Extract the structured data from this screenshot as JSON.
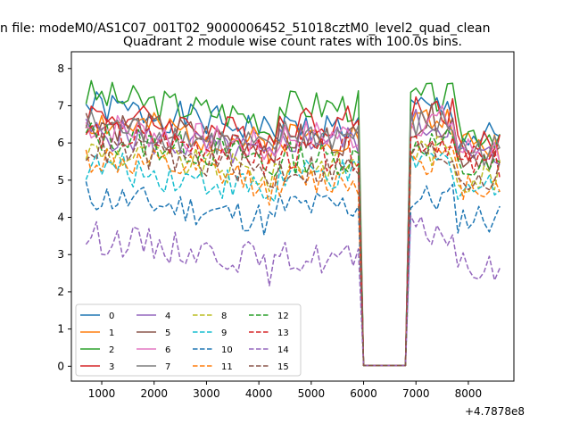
{
  "chart_data": {
    "type": "line",
    "suptitle": "n file: modeM0/AS1C07_001T02_9000006452_51018cztM0_level2_quad_clean",
    "title": "Quadrant 2 module wise count rates with 100.0s bins.",
    "xlabel": "",
    "ylabel": "",
    "x_offset_label": "+4.7878e8",
    "xlim": [
      420,
      8870
    ],
    "ylim": [
      -0.4,
      8.45
    ],
    "x_ticks": [
      1000,
      2000,
      3000,
      4000,
      5000,
      6000,
      7000,
      8000
    ],
    "x_tick_labels": [
      "1000",
      "2000",
      "3000",
      "4000",
      "5000",
      "6000",
      "7000",
      "8000"
    ],
    "y_ticks": [
      0,
      1,
      2,
      3,
      4,
      5,
      6,
      7,
      8
    ],
    "y_tick_labels": [
      "0",
      "1",
      "2",
      "3",
      "4",
      "5",
      "6",
      "7",
      "8"
    ],
    "grid": false,
    "legend_position": "lower-left",
    "segments": [
      {
        "start": 700,
        "end": 4000
      },
      {
        "start": 4100,
        "end": 4350
      },
      {
        "start": 4400,
        "end": 5900
      },
      {
        "start": 5950,
        "end": 6850
      },
      {
        "start": 6900,
        "end": 7700
      },
      {
        "start": 7800,
        "end": 8600
      }
    ],
    "series": [
      {
        "name": "0",
        "color": "#1f77b4",
        "style": "solid",
        "seed": 1,
        "segment_levels": [
          6.4,
          6.3,
          6.4,
          0.02,
          6.9,
          6.1
        ]
      },
      {
        "name": "1",
        "color": "#ff7f0e",
        "style": "solid",
        "seed": 2,
        "segment_levels": [
          6.0,
          5.9,
          6.2,
          0.02,
          6.6,
          5.9
        ]
      },
      {
        "name": "2",
        "color": "#2ca02c",
        "style": "solid",
        "seed": 3,
        "segment_levels": [
          6.7,
          6.4,
          7.0,
          0.02,
          7.2,
          6.3
        ]
      },
      {
        "name": "3",
        "color": "#d62728",
        "style": "solid",
        "seed": 4,
        "segment_levels": [
          6.2,
          6.1,
          6.6,
          0.02,
          6.9,
          5.9
        ]
      },
      {
        "name": "4",
        "color": "#9467bd",
        "style": "solid",
        "seed": 5,
        "segment_levels": [
          5.7,
          5.5,
          6.1,
          0.02,
          6.5,
          5.6
        ]
      },
      {
        "name": "5",
        "color": "#8c564b",
        "style": "solid",
        "seed": 6,
        "segment_levels": [
          6.0,
          5.9,
          6.1,
          0.02,
          6.6,
          5.7
        ]
      },
      {
        "name": "6",
        "color": "#e377c2",
        "style": "solid",
        "seed": 7,
        "segment_levels": [
          5.9,
          5.8,
          6.2,
          0.02,
          6.6,
          5.8
        ]
      },
      {
        "name": "7",
        "color": "#7f7f7f",
        "style": "solid",
        "seed": 8,
        "segment_levels": [
          5.9,
          5.7,
          6.2,
          0.02,
          6.5,
          5.8
        ]
      },
      {
        "name": "8",
        "color": "#bcbd22",
        "style": "dashed",
        "seed": 9,
        "segment_levels": [
          5.2,
          5.0,
          5.4,
          0.02,
          5.8,
          5.1
        ]
      },
      {
        "name": "9",
        "color": "#17becf",
        "style": "dashed",
        "seed": 10,
        "segment_levels": [
          4.8,
          4.6,
          5.1,
          0.02,
          5.5,
          4.8
        ]
      },
      {
        "name": "10",
        "color": "#1f77b4",
        "style": "dashed",
        "seed": 11,
        "segment_levels": [
          4.0,
          3.9,
          4.3,
          0.02,
          4.5,
          4.0
        ]
      },
      {
        "name": "11",
        "color": "#ff7f0e",
        "style": "dashed",
        "seed": 12,
        "segment_levels": [
          5.0,
          4.7,
          5.0,
          0.02,
          5.6,
          4.9
        ]
      },
      {
        "name": "12",
        "color": "#2ca02c",
        "style": "dashed",
        "seed": 13,
        "segment_levels": [
          5.6,
          5.3,
          5.6,
          0.02,
          6.0,
          5.3
        ]
      },
      {
        "name": "13",
        "color": "#d62728",
        "style": "dashed",
        "seed": 14,
        "segment_levels": [
          5.7,
          5.4,
          5.7,
          0.02,
          6.1,
          5.4
        ]
      },
      {
        "name": "14",
        "color": "#9467bd",
        "style": "dashed",
        "seed": 15,
        "segment_levels": [
          2.9,
          2.6,
          2.9,
          0.02,
          3.6,
          2.6
        ]
      },
      {
        "name": "15",
        "color": "#8c564b",
        "style": "dashed",
        "seed": 16,
        "segment_levels": [
          5.3,
          5.0,
          5.3,
          0.02,
          5.7,
          5.1
        ]
      }
    ]
  }
}
